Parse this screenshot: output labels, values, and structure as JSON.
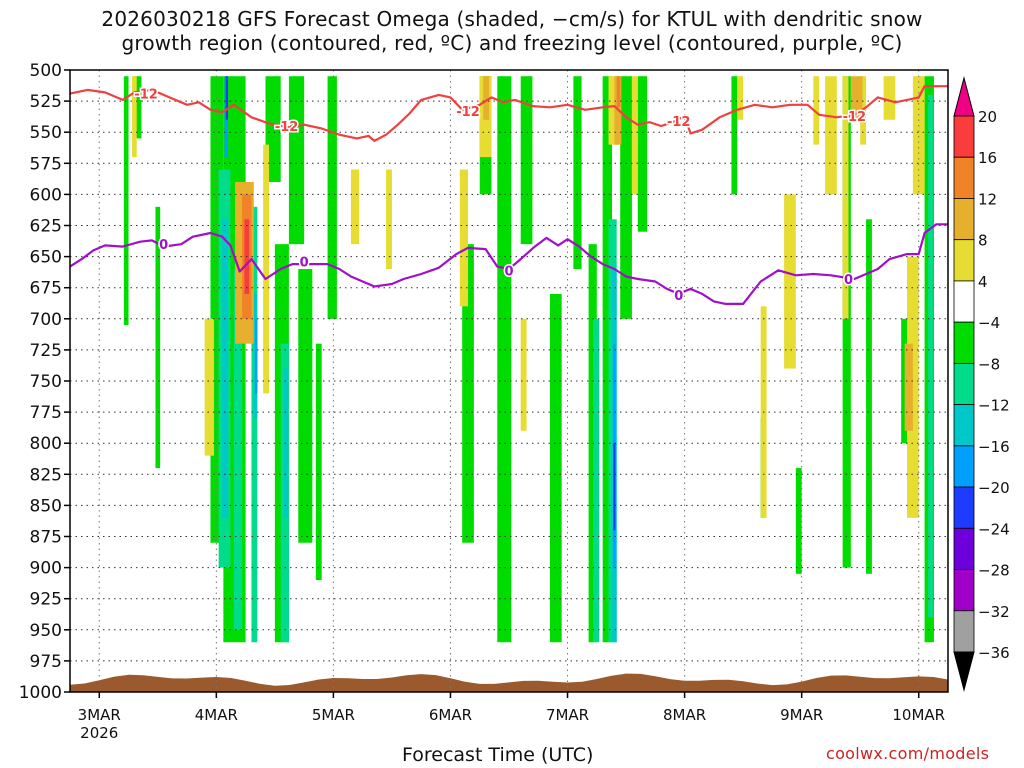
{
  "title": {
    "line1": "2026030218 GFS Forecast Omega (shaded, −cm/s) for KTUL with dendritic snow",
    "line2": "growth region (contoured, red, ºC) and freezing level (contoured, purple, ºC)"
  },
  "xlabel": "Forecast Time (UTC)",
  "credit": "coolwx.com/models",
  "chart_data": {
    "type": "heatmap",
    "title": "2026030218 GFS Forecast Omega (shaded, −cm/s) for KTUL with dendritic snow growth region (contoured, red, ºC) and freezing level (contoured, purple, ºC)",
    "xlabel": "Forecast Time (UTC)",
    "ylabel": "",
    "y_axis": {
      "reversed": true,
      "range": [
        500,
        1000
      ],
      "ticks": [
        500,
        525,
        550,
        575,
        600,
        625,
        650,
        675,
        700,
        725,
        750,
        775,
        800,
        825,
        850,
        875,
        900,
        925,
        950,
        975,
        1000
      ]
    },
    "x_axis": {
      "range_days": [
        2.75,
        10.25
      ],
      "ticks": [
        {
          "day": 3,
          "label": "3MAR",
          "sublabel": "2026"
        },
        {
          "day": 4,
          "label": "4MAR"
        },
        {
          "day": 5,
          "label": "5MAR"
        },
        {
          "day": 6,
          "label": "6MAR"
        },
        {
          "day": 7,
          "label": "7MAR"
        },
        {
          "day": 8,
          "label": "8MAR"
        },
        {
          "day": 9,
          "label": "9MAR"
        },
        {
          "day": 10,
          "label": "10MAR"
        }
      ]
    },
    "grid": true,
    "colorbar": {
      "levels": [
        -36,
        -32,
        -28,
        -24,
        -20,
        -16,
        -12,
        -8,
        -4,
        4,
        8,
        12,
        16,
        20
      ],
      "labels": [
        "20",
        "16",
        "12",
        "8",
        "4",
        "−4",
        "−8",
        "−12",
        "−16",
        "−20",
        "−24",
        "−28",
        "−32",
        "−36"
      ],
      "colors": [
        "#000000",
        "#a0a0a0",
        "#a000c8",
        "#6e00dc",
        "#1e3cff",
        "#00a0ff",
        "#00c8c8",
        "#00dc8c",
        "#00dc00",
        "#ffffff",
        "#e6dc32",
        "#e6af2d",
        "#f08228",
        "#fa3c3c",
        "#f00082"
      ]
    },
    "contours": [
      {
        "name": "-12",
        "color": "#f04040",
        "label": "-12",
        "label_points": [
          [
            3.4,
            519
          ],
          [
            4.6,
            545
          ],
          [
            6.15,
            533
          ],
          [
            7.95,
            541
          ],
          [
            9.45,
            537
          ]
        ],
        "points": [
          [
            2.75,
            519
          ],
          [
            2.9,
            516
          ],
          [
            3.05,
            518
          ],
          [
            3.2,
            524
          ],
          [
            3.3,
            518
          ],
          [
            3.45,
            516
          ],
          [
            3.6,
            522
          ],
          [
            3.75,
            528
          ],
          [
            3.85,
            526
          ],
          [
            3.95,
            532
          ],
          [
            4.05,
            534
          ],
          [
            4.15,
            528
          ],
          [
            4.3,
            538
          ],
          [
            4.45,
            543
          ],
          [
            4.6,
            546
          ],
          [
            4.75,
            544
          ],
          [
            4.9,
            547
          ],
          [
            5.05,
            552
          ],
          [
            5.2,
            555
          ],
          [
            5.3,
            553
          ],
          [
            5.35,
            557
          ],
          [
            5.45,
            552
          ],
          [
            5.55,
            544
          ],
          [
            5.65,
            535
          ],
          [
            5.75,
            524
          ],
          [
            5.9,
            520
          ],
          [
            6.0,
            522
          ],
          [
            6.1,
            532
          ],
          [
            6.25,
            528
          ],
          [
            6.35,
            522
          ],
          [
            6.45,
            526
          ],
          [
            6.55,
            524
          ],
          [
            6.7,
            529
          ],
          [
            6.85,
            530
          ],
          [
            7.0,
            528
          ],
          [
            7.15,
            532
          ],
          [
            7.3,
            530
          ],
          [
            7.4,
            529
          ],
          [
            7.5,
            538
          ],
          [
            7.6,
            544
          ],
          [
            7.7,
            542
          ],
          [
            7.8,
            545
          ],
          [
            7.9,
            542
          ],
          [
            8.0,
            537
          ],
          [
            8.05,
            551
          ],
          [
            8.15,
            548
          ],
          [
            8.3,
            538
          ],
          [
            8.45,
            532
          ],
          [
            8.6,
            528
          ],
          [
            8.75,
            530
          ],
          [
            8.9,
            528
          ],
          [
            9.05,
            528
          ],
          [
            9.15,
            536
          ],
          [
            9.3,
            538
          ],
          [
            9.45,
            536
          ],
          [
            9.55,
            530
          ],
          [
            9.65,
            522
          ],
          [
            9.8,
            526
          ],
          [
            9.9,
            524
          ],
          [
            10.0,
            522
          ],
          [
            10.05,
            513
          ],
          [
            10.2,
            513
          ],
          [
            10.25,
            513
          ]
        ]
      },
      {
        "name": "0",
        "color": "#a010c8",
        "label": "0",
        "label_points": [
          [
            3.55,
            640
          ],
          [
            4.75,
            654
          ],
          [
            6.5,
            661
          ],
          [
            7.95,
            681
          ],
          [
            9.4,
            668
          ]
        ],
        "points": [
          [
            2.75,
            658
          ],
          [
            2.85,
            652
          ],
          [
            2.95,
            645
          ],
          [
            3.05,
            641
          ],
          [
            3.2,
            642
          ],
          [
            3.35,
            638
          ],
          [
            3.45,
            637
          ],
          [
            3.55,
            642
          ],
          [
            3.7,
            640
          ],
          [
            3.8,
            634
          ],
          [
            3.95,
            631
          ],
          [
            4.05,
            634
          ],
          [
            4.12,
            641
          ],
          [
            4.2,
            662
          ],
          [
            4.3,
            652
          ],
          [
            4.42,
            668
          ],
          [
            4.55,
            660
          ],
          [
            4.65,
            656
          ],
          [
            4.8,
            656
          ],
          [
            4.95,
            656
          ],
          [
            5.05,
            660
          ],
          [
            5.15,
            666
          ],
          [
            5.25,
            670
          ],
          [
            5.35,
            674
          ],
          [
            5.5,
            672
          ],
          [
            5.6,
            668
          ],
          [
            5.75,
            664
          ],
          [
            5.9,
            659
          ],
          [
            6.05,
            648
          ],
          [
            6.15,
            643
          ],
          [
            6.3,
            644
          ],
          [
            6.4,
            658
          ],
          [
            6.5,
            660
          ],
          [
            6.6,
            652
          ],
          [
            6.72,
            642
          ],
          [
            6.82,
            635
          ],
          [
            6.92,
            641
          ],
          [
            7.0,
            636
          ],
          [
            7.1,
            642
          ],
          [
            7.2,
            650
          ],
          [
            7.3,
            656
          ],
          [
            7.4,
            660
          ],
          [
            7.5,
            666
          ],
          [
            7.6,
            668
          ],
          [
            7.75,
            670
          ],
          [
            7.85,
            676
          ],
          [
            7.95,
            680
          ],
          [
            8.05,
            676
          ],
          [
            8.15,
            680
          ],
          [
            8.25,
            686
          ],
          [
            8.35,
            688
          ],
          [
            8.5,
            688
          ],
          [
            8.65,
            670
          ],
          [
            8.8,
            661
          ],
          [
            8.95,
            665
          ],
          [
            9.1,
            664
          ],
          [
            9.25,
            665
          ],
          [
            9.45,
            668
          ],
          [
            9.55,
            664
          ],
          [
            9.65,
            660
          ],
          [
            9.75,
            652
          ],
          [
            9.9,
            648
          ],
          [
            10.0,
            648
          ],
          [
            10.05,
            631
          ],
          [
            10.15,
            624
          ],
          [
            10.25,
            624
          ]
        ]
      }
    ],
    "series": [
      {
        "name": "-4 to -8",
        "color": "#00dc00",
        "regions": [
          [
            3.21,
            3.25,
            505,
            705
          ],
          [
            3.3,
            3.36,
            505,
            555
          ],
          [
            3.48,
            3.52,
            610,
            820
          ],
          [
            3.95,
            4.06,
            505,
            880
          ],
          [
            4.06,
            4.25,
            505,
            960
          ],
          [
            4.42,
            4.55,
            505,
            590
          ],
          [
            4.5,
            4.62,
            640,
            960
          ],
          [
            4.62,
            4.75,
            505,
            640
          ],
          [
            4.7,
            4.82,
            660,
            880
          ],
          [
            4.85,
            4.9,
            720,
            910
          ],
          [
            4.95,
            5.03,
            505,
            700
          ],
          [
            6.1,
            6.2,
            640,
            880
          ],
          [
            6.25,
            6.35,
            505,
            600
          ],
          [
            6.4,
            6.52,
            505,
            960
          ],
          [
            6.6,
            6.7,
            505,
            640
          ],
          [
            6.85,
            6.95,
            680,
            960
          ],
          [
            7.05,
            7.12,
            505,
            660
          ],
          [
            7.18,
            7.25,
            640,
            960
          ],
          [
            7.3,
            7.38,
            505,
            960
          ],
          [
            7.45,
            7.55,
            505,
            700
          ],
          [
            7.6,
            7.68,
            505,
            630
          ],
          [
            8.4,
            8.45,
            505,
            600
          ],
          [
            8.65,
            8.68,
            780,
            860
          ],
          [
            8.95,
            9.0,
            820,
            905
          ],
          [
            9.35,
            9.42,
            505,
            900
          ],
          [
            9.55,
            9.6,
            620,
            905
          ],
          [
            9.85,
            9.9,
            700,
            800
          ],
          [
            10.05,
            10.13,
            505,
            960
          ]
        ]
      },
      {
        "name": "-8 to -12",
        "color": "#00dc8c",
        "regions": [
          [
            4.02,
            4.12,
            580,
            900
          ],
          [
            4.15,
            4.22,
            660,
            950
          ],
          [
            4.3,
            4.35,
            610,
            960
          ],
          [
            4.55,
            4.62,
            720,
            960
          ],
          [
            7.22,
            7.27,
            700,
            960
          ],
          [
            7.35,
            7.42,
            620,
            960
          ],
          [
            10.08,
            10.12,
            520,
            940
          ]
        ]
      },
      {
        "name": "-12 to -16",
        "color": "#00c8c8",
        "regions": [
          [
            4.05,
            4.1,
            620,
            860
          ],
          [
            4.32,
            4.35,
            680,
            780
          ],
          [
            4.58,
            4.61,
            740,
            860
          ],
          [
            7.38,
            7.42,
            660,
            960
          ]
        ]
      },
      {
        "name": "-16 to -20",
        "color": "#00a0ff",
        "regions": [
          [
            4.07,
            4.1,
            505,
            570
          ],
          [
            4.33,
            4.35,
            700,
            760
          ],
          [
            7.39,
            7.41,
            720,
            900
          ]
        ]
      },
      {
        "name": "-20 to -24",
        "color": "#1e3cff",
        "regions": [
          [
            4.08,
            4.1,
            505,
            540
          ],
          [
            7.39,
            7.41,
            800,
            870
          ]
        ]
      },
      {
        "name": "4 to 8",
        "color": "#e6dc32",
        "regions": [
          [
            3.28,
            3.32,
            505,
            570
          ],
          [
            3.9,
            3.98,
            700,
            810
          ],
          [
            4.4,
            4.45,
            560,
            760
          ],
          [
            5.15,
            5.22,
            580,
            640
          ],
          [
            5.45,
            5.5,
            580,
            660
          ],
          [
            6.08,
            6.15,
            580,
            690
          ],
          [
            6.25,
            6.35,
            505,
            570
          ],
          [
            6.6,
            6.65,
            700,
            790
          ],
          [
            7.35,
            7.45,
            505,
            560
          ],
          [
            7.55,
            7.6,
            505,
            600
          ],
          [
            8.45,
            8.5,
            505,
            540
          ],
          [
            8.65,
            8.7,
            690,
            860
          ],
          [
            8.85,
            8.95,
            600,
            740
          ],
          [
            9.1,
            9.15,
            505,
            560
          ],
          [
            9.2,
            9.3,
            505,
            600
          ],
          [
            9.35,
            9.4,
            505,
            700
          ],
          [
            9.5,
            9.55,
            505,
            560
          ],
          [
            9.7,
            9.8,
            505,
            540
          ],
          [
            9.95,
            10.05,
            505,
            600
          ],
          [
            9.9,
            10.0,
            650,
            860
          ]
        ]
      },
      {
        "name": "8 to 12",
        "color": "#e6af2d",
        "regions": [
          [
            4.16,
            4.32,
            590,
            720
          ],
          [
            6.28,
            6.33,
            505,
            540
          ],
          [
            7.4,
            7.46,
            505,
            560
          ],
          [
            9.42,
            9.52,
            505,
            540
          ],
          [
            9.88,
            9.95,
            720,
            790
          ]
        ]
      },
      {
        "name": "12 to 16",
        "color": "#f08228",
        "regions": [
          [
            4.22,
            4.3,
            600,
            700
          ],
          [
            7.42,
            7.45,
            505,
            530
          ]
        ]
      },
      {
        "name": "16 to 20",
        "color": "#fa3c3c",
        "regions": [
          [
            4.24,
            4.28,
            620,
            680
          ]
        ]
      }
    ]
  }
}
